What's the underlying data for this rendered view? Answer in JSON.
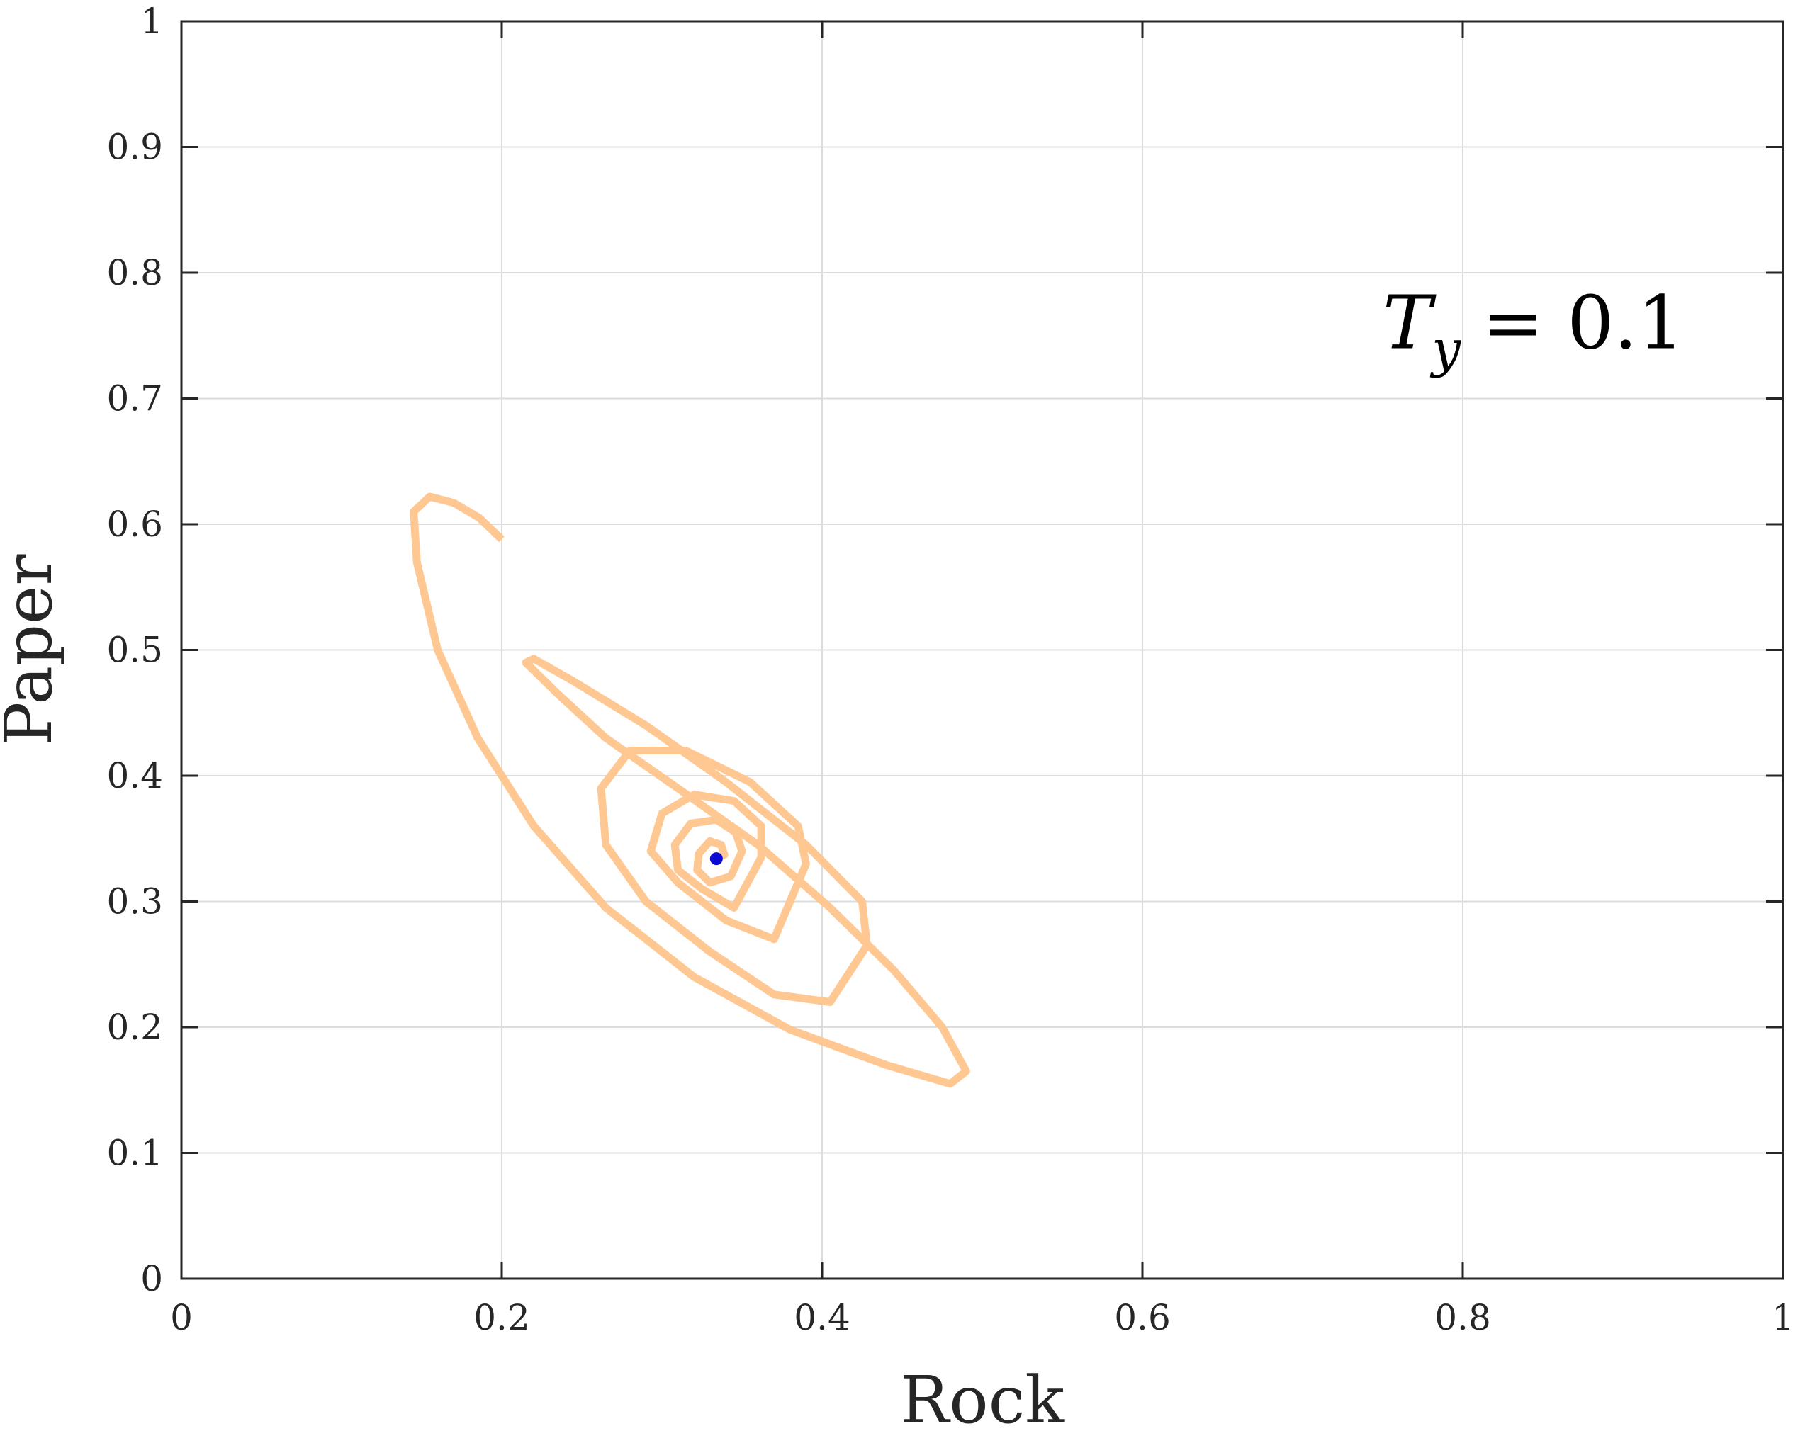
{
  "chart_data": {
    "type": "line",
    "xlabel": "Rock",
    "ylabel": "Paper",
    "xlim": [
      0,
      1
    ],
    "ylim": [
      0,
      1
    ],
    "xticks": [
      0,
      0.2,
      0.4,
      0.6,
      0.8,
      1
    ],
    "yticks": [
      0,
      0.1,
      0.2,
      0.3,
      0.4,
      0.5,
      0.6,
      0.7,
      0.8,
      0.9,
      1
    ],
    "xtick_labels": [
      "0",
      "0.2",
      "0.4",
      "0.6",
      "0.8",
      "1"
    ],
    "ytick_labels": [
      "0",
      "0.1",
      "0.2",
      "0.3",
      "0.4",
      "0.5",
      "0.6",
      "0.7",
      "0.8",
      "0.9",
      "1"
    ],
    "grid": true,
    "annotation": {
      "var": "T",
      "sub": "y",
      "eq": "= 0.1",
      "x": 0.75,
      "y": 0.74
    },
    "series": [
      {
        "type": "spiral-trajectory",
        "color": "#ffc58c",
        "start": [
          0.2,
          0.588
        ],
        "center": [
          0.334,
          0.334
        ],
        "x": [
          0.2,
          0.186,
          0.17,
          0.155,
          0.145,
          0.147,
          0.16,
          0.185,
          0.22,
          0.265,
          0.32,
          0.38,
          0.44,
          0.48,
          0.49,
          0.475,
          0.445,
          0.405,
          0.36,
          0.31,
          0.265,
          0.235,
          0.215,
          0.22,
          0.245,
          0.29,
          0.34,
          0.39,
          0.425,
          0.428,
          0.405,
          0.37,
          0.33,
          0.29,
          0.265,
          0.262,
          0.28,
          0.315,
          0.355,
          0.385,
          0.39,
          0.37,
          0.34,
          0.31,
          0.293,
          0.3,
          0.32,
          0.345,
          0.362,
          0.362,
          0.345,
          0.325,
          0.31,
          0.308,
          0.318,
          0.334,
          0.346,
          0.35,
          0.343,
          0.33,
          0.322,
          0.323,
          0.33,
          0.337,
          0.339,
          0.335
        ],
        "y": [
          0.588,
          0.605,
          0.617,
          0.622,
          0.61,
          0.57,
          0.5,
          0.43,
          0.36,
          0.295,
          0.24,
          0.198,
          0.17,
          0.155,
          0.165,
          0.2,
          0.245,
          0.295,
          0.345,
          0.39,
          0.43,
          0.465,
          0.49,
          0.493,
          0.475,
          0.44,
          0.395,
          0.345,
          0.3,
          0.265,
          0.22,
          0.226,
          0.26,
          0.3,
          0.345,
          0.39,
          0.42,
          0.42,
          0.395,
          0.36,
          0.33,
          0.27,
          0.285,
          0.315,
          0.34,
          0.37,
          0.385,
          0.38,
          0.36,
          0.335,
          0.295,
          0.31,
          0.325,
          0.345,
          0.362,
          0.365,
          0.355,
          0.34,
          0.32,
          0.315,
          0.325,
          0.338,
          0.348,
          0.345,
          0.337,
          0.335
        ]
      }
    ],
    "points": [
      {
        "x": 0.334,
        "y": 0.334,
        "color": "#0a0ad0"
      }
    ]
  }
}
